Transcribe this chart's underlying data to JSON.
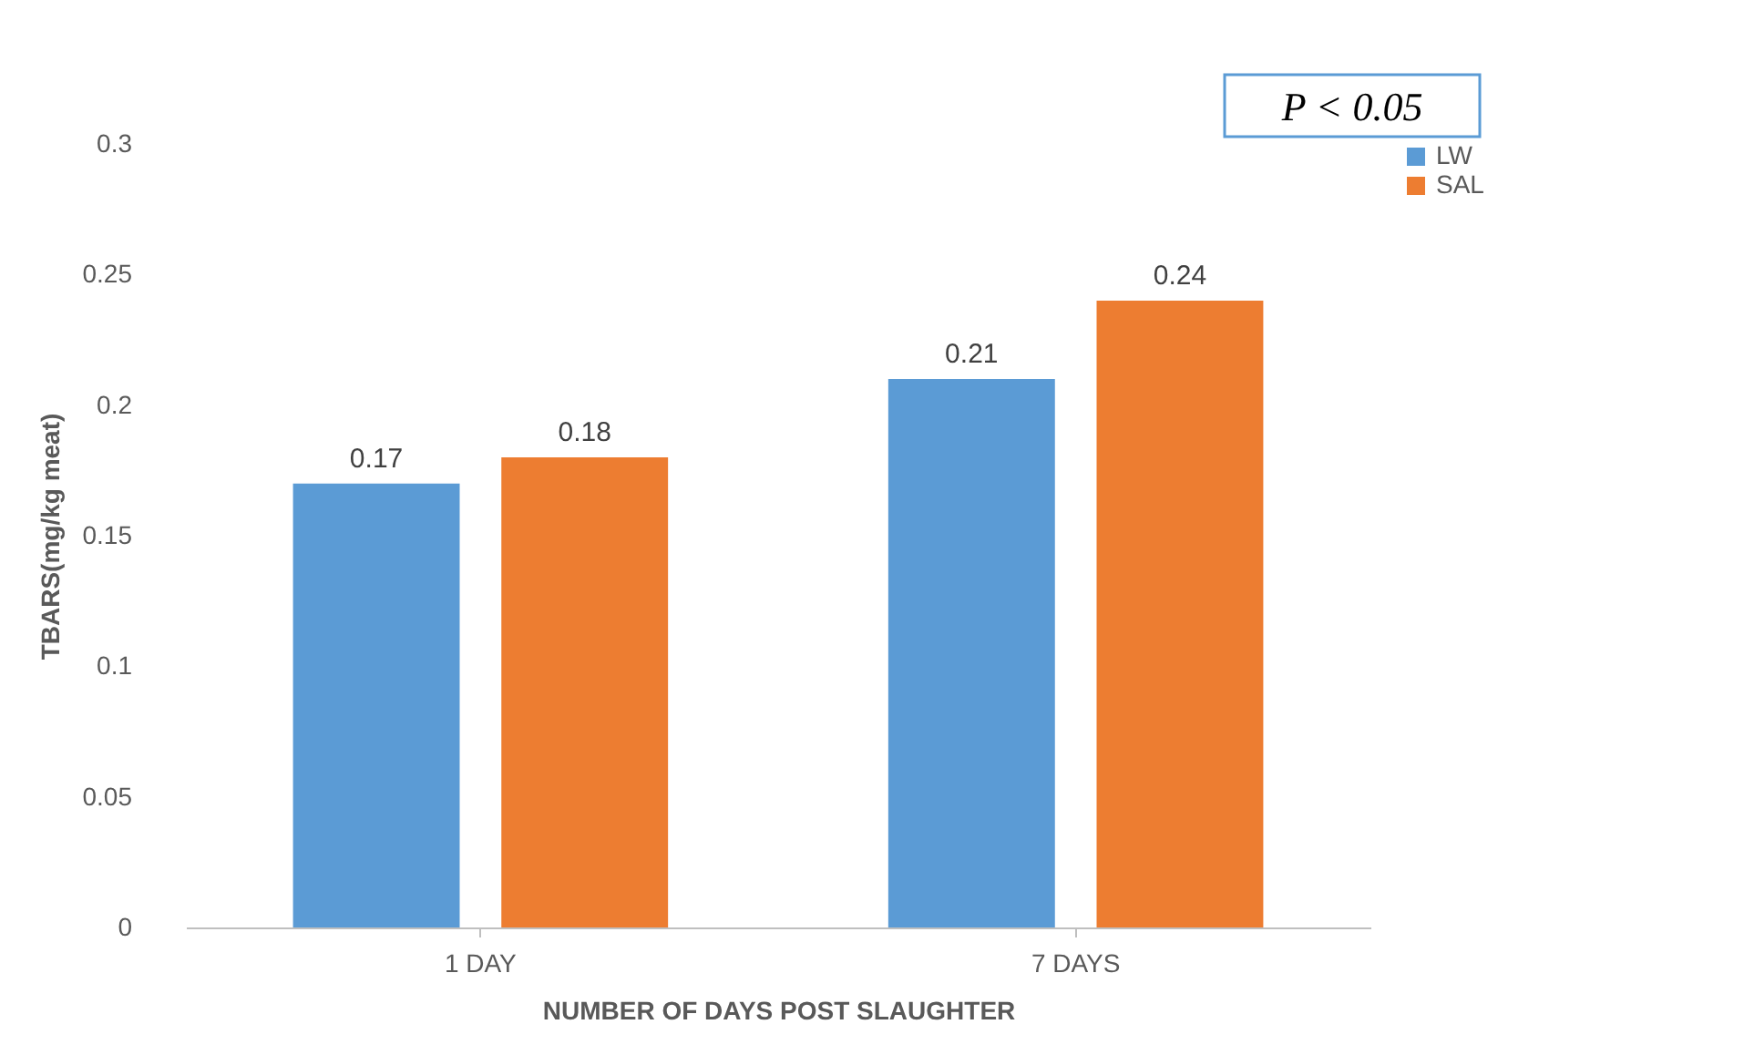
{
  "chart_data": {
    "type": "bar",
    "xlabel": "NUMBER OF DAYS POST SLAUGHTER",
    "ylabel": "TBARS(mg/kg meat)",
    "categories": [
      "1 DAY",
      "7 DAYS"
    ],
    "series": [
      {
        "name": "LW",
        "color": "#5b9bd5",
        "values": [
          0.17,
          0.21
        ]
      },
      {
        "name": "SAL",
        "color": "#ed7d31",
        "values": [
          0.18,
          0.24
        ]
      }
    ],
    "ylim": [
      0,
      0.3
    ],
    "yticks": [
      0,
      0.05,
      0.1,
      0.15,
      0.2,
      0.25,
      0.3
    ],
    "grid": false,
    "legend": "right",
    "data_labels": true,
    "annotations": [
      "P < 0.05"
    ]
  }
}
